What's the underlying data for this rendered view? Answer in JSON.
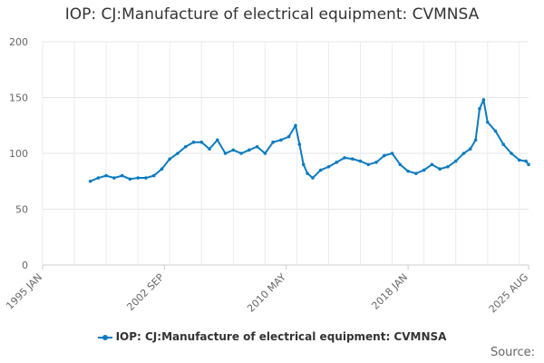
{
  "chart_data": {
    "type": "line",
    "title": "IOP: CJ:Manufacture of electrical equipment: CVMNSA",
    "xlabel": "",
    "ylabel": "",
    "ylim": [
      0,
      200
    ],
    "yticks": [
      "0",
      "50",
      "100",
      "150",
      "200"
    ],
    "xticks": [
      "1995 JAN",
      "2002 SEP",
      "2010 MAY",
      "2018 JAN",
      "2025 AUG"
    ],
    "grid": true,
    "legend_position": "bottom",
    "series_color": "#0b7bbf",
    "series": [
      {
        "name": "IOP: CJ:Manufacture of electrical equipment: CVMNSA",
        "points": [
          [
            "1998-01",
            75
          ],
          [
            "1998-07",
            78
          ],
          [
            "1999-01",
            80
          ],
          [
            "1999-07",
            78
          ],
          [
            "2000-01",
            80
          ],
          [
            "2000-07",
            77
          ],
          [
            "2001-01",
            78
          ],
          [
            "2001-07",
            78
          ],
          [
            "2002-01",
            80
          ],
          [
            "2002-07",
            86
          ],
          [
            "2003-01",
            95
          ],
          [
            "2003-07",
            100
          ],
          [
            "2004-01",
            106
          ],
          [
            "2004-07",
            110
          ],
          [
            "2005-01",
            110
          ],
          [
            "2005-07",
            104
          ],
          [
            "2006-01",
            112
          ],
          [
            "2006-07",
            100
          ],
          [
            "2007-01",
            103
          ],
          [
            "2007-07",
            100
          ],
          [
            "2008-01",
            103
          ],
          [
            "2008-07",
            106
          ],
          [
            "2009-01",
            100
          ],
          [
            "2009-07",
            110
          ],
          [
            "2010-01",
            112
          ],
          [
            "2010-07",
            115
          ],
          [
            "2010-12",
            125
          ],
          [
            "2011-03",
            108
          ],
          [
            "2011-06",
            90
          ],
          [
            "2011-09",
            82
          ],
          [
            "2012-01",
            78
          ],
          [
            "2012-07",
            85
          ],
          [
            "2013-01",
            88
          ],
          [
            "2013-07",
            92
          ],
          [
            "2014-01",
            96
          ],
          [
            "2014-07",
            95
          ],
          [
            "2015-01",
            93
          ],
          [
            "2015-07",
            90
          ],
          [
            "2016-01",
            92
          ],
          [
            "2016-07",
            98
          ],
          [
            "2017-01",
            100
          ],
          [
            "2017-07",
            90
          ],
          [
            "2018-01",
            84
          ],
          [
            "2018-07",
            82
          ],
          [
            "2019-01",
            85
          ],
          [
            "2019-07",
            90
          ],
          [
            "2020-01",
            86
          ],
          [
            "2020-07",
            88
          ],
          [
            "2021-01",
            93
          ],
          [
            "2021-07",
            100
          ],
          [
            "2021-12",
            104
          ],
          [
            "2022-04",
            112
          ],
          [
            "2022-07",
            140
          ],
          [
            "2022-10",
            148
          ],
          [
            "2023-01",
            128
          ],
          [
            "2023-07",
            120
          ],
          [
            "2024-01",
            108
          ],
          [
            "2024-07",
            100
          ],
          [
            "2025-01",
            94
          ],
          [
            "2025-06",
            93
          ],
          [
            "2025-08",
            90
          ]
        ]
      }
    ]
  },
  "legend_label": "IOP: CJ:Manufacture of electrical equipment: CVMNSA",
  "source_label": "Source:"
}
